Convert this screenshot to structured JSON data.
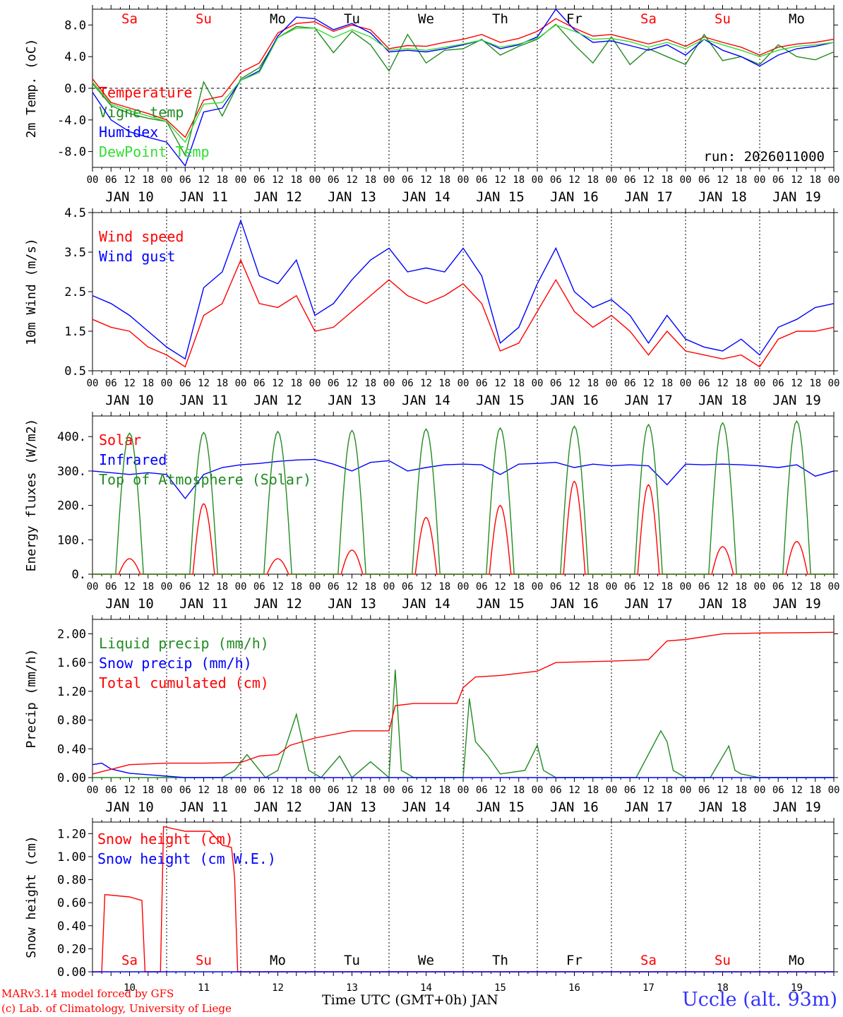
{
  "run_label": "run: 2026011000",
  "footer_model": "MARv3.14 model forced by GFS",
  "footer_copyright": "(c) Lab. of Climatology, University of Liege",
  "station": "Uccle (alt. 93m)",
  "x_title": "Time UTC (GMT+0h) JAN",
  "colors": {
    "red": "#ff0000",
    "green": "#228b22",
    "blue": "#0000ff",
    "light_green": "#33dd33",
    "weekend": "#ff0000",
    "weekday": "#000000"
  },
  "hour_ticks": [
    "00",
    "06",
    "12",
    "18"
  ],
  "days": [
    {
      "abbr": "Sa",
      "label": "JAN 10",
      "num": "10",
      "weekend": true
    },
    {
      "abbr": "Su",
      "label": "JAN 11",
      "num": "11",
      "weekend": true
    },
    {
      "abbr": "Mo",
      "label": "JAN 12",
      "num": "12",
      "weekend": false
    },
    {
      "abbr": "Tu",
      "label": "JAN 13",
      "num": "13",
      "weekend": false
    },
    {
      "abbr": "We",
      "label": "JAN 14",
      "num": "14",
      "weekend": false
    },
    {
      "abbr": "Th",
      "label": "JAN 15",
      "num": "15",
      "weekend": false
    },
    {
      "abbr": "Fr",
      "label": "JAN 16",
      "num": "16",
      "weekend": false
    },
    {
      "abbr": "Sa",
      "label": "JAN 17",
      "num": "17",
      "weekend": true
    },
    {
      "abbr": "Su",
      "label": "JAN 18",
      "num": "18",
      "weekend": true
    },
    {
      "abbr": "Mo",
      "label": "JAN 19",
      "num": "19",
      "weekend": false
    }
  ],
  "chart_data": [
    {
      "type": "line",
      "ylabel": "2m Temp. (oC)",
      "ylim": [
        -10,
        10
      ],
      "yticks": [
        "8.0",
        "4.0",
        "0.0",
        "-4.0",
        "-8.0"
      ],
      "ytick_values": [
        8,
        4,
        0,
        -4,
        -8
      ],
      "zero_line": true,
      "x_unit": "hours since 2026-01-10 00 UTC",
      "series": [
        {
          "name": "Temperature",
          "color": "red",
          "x": [
            0,
            6,
            12,
            18,
            24,
            30,
            36,
            42,
            48,
            54,
            60,
            66,
            72,
            78,
            84,
            90,
            96,
            102,
            108,
            114,
            120,
            126,
            132,
            138,
            144,
            150,
            156,
            162,
            168,
            174,
            180,
            186,
            192,
            198,
            204,
            210,
            216,
            222,
            228,
            234,
            240
          ],
          "values": [
            1.2,
            -1.8,
            -2.5,
            -3.2,
            -4.0,
            -6.2,
            -1.5,
            -1.0,
            2.0,
            3.2,
            7.0,
            8.2,
            8.4,
            7.2,
            8.0,
            7.4,
            5.0,
            5.4,
            5.3,
            5.8,
            6.2,
            6.8,
            5.8,
            6.3,
            7.2,
            8.8,
            7.6,
            6.6,
            6.8,
            6.2,
            5.6,
            6.2,
            5.3,
            6.5,
            5.8,
            5.2,
            4.2,
            5.2,
            5.6,
            5.8,
            6.2
          ]
        },
        {
          "name": "Vigne temp",
          "color": "green",
          "x": [
            0,
            6,
            12,
            18,
            24,
            30,
            36,
            42,
            48,
            54,
            60,
            66,
            72,
            78,
            84,
            90,
            96,
            102,
            108,
            114,
            120,
            126,
            132,
            138,
            144,
            150,
            156,
            162,
            168,
            174,
            180,
            186,
            192,
            198,
            204,
            210,
            216,
            222,
            228,
            234,
            240
          ],
          "values": [
            0.6,
            -2.2,
            -3.2,
            -3.8,
            -4.2,
            -8.5,
            0.8,
            -3.5,
            1.2,
            2.6,
            6.4,
            7.8,
            7.6,
            4.5,
            7.2,
            5.5,
            2.2,
            6.8,
            3.2,
            4.8,
            5.0,
            6.2,
            4.2,
            5.3,
            6.2,
            8.1,
            5.5,
            3.2,
            6.5,
            3.0,
            5.0,
            4.0,
            3.0,
            6.8,
            3.5,
            4.0,
            3.0,
            5.5,
            4.0,
            3.6,
            4.6
          ]
        },
        {
          "name": "Humidex",
          "color": "blue",
          "x": [
            0,
            6,
            12,
            18,
            24,
            30,
            36,
            42,
            48,
            54,
            60,
            66,
            72,
            78,
            84,
            90,
            96,
            102,
            108,
            114,
            120,
            126,
            132,
            138,
            144,
            150,
            156,
            162,
            168,
            174,
            180,
            186,
            192,
            198,
            204,
            210,
            216,
            222,
            228,
            234,
            240
          ],
          "values": [
            -0.5,
            -4.0,
            -5.5,
            -6.2,
            -6.8,
            -9.8,
            -3.0,
            -2.5,
            1.0,
            2.2,
            6.6,
            9.0,
            8.8,
            7.4,
            8.2,
            7.0,
            4.6,
            4.8,
            4.6,
            5.0,
            5.5,
            6.1,
            5.0,
            5.5,
            6.5,
            10.0,
            7.4,
            5.8,
            6.0,
            5.4,
            4.8,
            5.5,
            4.2,
            6.2,
            4.8,
            4.0,
            2.8,
            4.2,
            5.0,
            5.3,
            5.8
          ]
        },
        {
          "name": "DewPoint Temp",
          "color": "light_green",
          "x": [
            0,
            6,
            12,
            18,
            24,
            30,
            36,
            42,
            48,
            54,
            60,
            66,
            72,
            78,
            84,
            90,
            96,
            102,
            108,
            114,
            120,
            126,
            132,
            138,
            144,
            150,
            156,
            162,
            168,
            174,
            180,
            186,
            192,
            198,
            204,
            210,
            216,
            222,
            228,
            234,
            240
          ],
          "values": [
            0.8,
            -2.0,
            -2.8,
            -3.5,
            -4.2,
            -6.8,
            -2.0,
            -1.8,
            1.0,
            2.0,
            6.4,
            7.6,
            7.6,
            6.4,
            7.4,
            6.5,
            4.8,
            5.0,
            4.8,
            5.2,
            5.6,
            6.1,
            5.2,
            5.6,
            6.3,
            8.0,
            7.2,
            6.2,
            6.3,
            5.9,
            5.2,
            5.8,
            5.0,
            6.2,
            5.5,
            4.8,
            4.0,
            4.8,
            5.3,
            5.5,
            5.8
          ]
        }
      ]
    },
    {
      "type": "line",
      "ylabel": "10m Wind (m/s)",
      "ylim": [
        0.5,
        4.5
      ],
      "yticks": [
        "4.5",
        "3.5",
        "2.5",
        "1.5",
        "0.5"
      ],
      "ytick_values": [
        4.5,
        3.5,
        2.5,
        1.5,
        0.5
      ],
      "series": [
        {
          "name": "Wind speed",
          "color": "red",
          "x": [
            0,
            6,
            12,
            18,
            24,
            30,
            36,
            42,
            48,
            54,
            60,
            66,
            72,
            78,
            84,
            90,
            96,
            102,
            108,
            114,
            120,
            126,
            132,
            138,
            144,
            150,
            156,
            162,
            168,
            174,
            180,
            186,
            192,
            198,
            204,
            210,
            216,
            222,
            228,
            234,
            240
          ],
          "values": [
            1.8,
            1.6,
            1.5,
            1.1,
            0.9,
            0.6,
            1.9,
            2.2,
            3.3,
            2.2,
            2.1,
            2.4,
            1.5,
            1.6,
            2.0,
            2.4,
            2.8,
            2.4,
            2.2,
            2.4,
            2.7,
            2.2,
            1.0,
            1.2,
            2.0,
            2.8,
            2.0,
            1.6,
            1.9,
            1.5,
            0.9,
            1.5,
            1.0,
            0.9,
            0.8,
            0.9,
            0.6,
            1.3,
            1.5,
            1.5,
            1.6
          ]
        },
        {
          "name": "Wind gust",
          "color": "blue",
          "x": [
            0,
            6,
            12,
            18,
            24,
            30,
            36,
            42,
            48,
            54,
            60,
            66,
            72,
            78,
            84,
            90,
            96,
            102,
            108,
            114,
            120,
            126,
            132,
            138,
            144,
            150,
            156,
            162,
            168,
            174,
            180,
            186,
            192,
            198,
            204,
            210,
            216,
            222,
            228,
            234,
            240
          ],
          "values": [
            2.4,
            2.2,
            1.9,
            1.5,
            1.1,
            0.8,
            2.6,
            3.0,
            4.3,
            2.9,
            2.7,
            3.3,
            1.9,
            2.2,
            2.8,
            3.3,
            3.6,
            3.0,
            3.1,
            3.0,
            3.6,
            2.9,
            1.2,
            1.6,
            2.7,
            3.6,
            2.5,
            2.1,
            2.3,
            1.9,
            1.2,
            1.9,
            1.3,
            1.1,
            1.0,
            1.3,
            0.9,
            1.6,
            1.8,
            2.1,
            2.2
          ]
        }
      ]
    },
    {
      "type": "line",
      "ylabel": "Energy fluxes (W/m2)",
      "ylim": [
        0,
        460
      ],
      "yticks": [
        "400.",
        "300.",
        "200.",
        "100.",
        "0."
      ],
      "ytick_values": [
        400,
        300,
        200,
        100,
        0
      ],
      "series": [
        {
          "name": "Solar",
          "color": "red",
          "peaks": [
            45,
            205,
            45,
            70,
            165,
            200,
            270,
            260,
            80,
            95
          ]
        },
        {
          "name": "Infrared",
          "color": "blue",
          "x": [
            0,
            6,
            12,
            18,
            24,
            30,
            36,
            42,
            48,
            54,
            60,
            66,
            72,
            78,
            84,
            90,
            96,
            102,
            108,
            114,
            120,
            126,
            132,
            138,
            144,
            150,
            156,
            162,
            168,
            174,
            180,
            186,
            192,
            198,
            204,
            210,
            216,
            222,
            228,
            234,
            240
          ],
          "values": [
            300,
            295,
            290,
            295,
            290,
            220,
            290,
            310,
            318,
            322,
            328,
            332,
            334,
            320,
            300,
            325,
            330,
            300,
            310,
            318,
            320,
            318,
            290,
            320,
            322,
            325,
            310,
            320,
            315,
            318,
            315,
            260,
            320,
            318,
            320,
            318,
            315,
            310,
            318,
            285,
            300
          ]
        },
        {
          "name": "Top of Atmosphere (Solar)",
          "color": "green",
          "peaks": [
            410,
            412,
            415,
            418,
            422,
            425,
            430,
            435,
            440,
            445
          ]
        }
      ]
    },
    {
      "type": "line",
      "ylabel": "Precip (mm/h)",
      "ylim": [
        0,
        2.2
      ],
      "yticks": [
        "2.00",
        "1.60",
        "1.20",
        "0.80",
        "0.40",
        "0.00"
      ],
      "ytick_values": [
        2.0,
        1.6,
        1.2,
        0.8,
        0.4,
        0.0
      ],
      "series": [
        {
          "name": "Liquid precip (mm/h)",
          "color": "green",
          "x": [
            0,
            42,
            46,
            50,
            56,
            60,
            66,
            70,
            74,
            80,
            84,
            90,
            96,
            98,
            100,
            104,
            120,
            122,
            124,
            128,
            132,
            140,
            144,
            146,
            150,
            168,
            176,
            184,
            186,
            188,
            192,
            200,
            206,
            208,
            210,
            216,
            240
          ],
          "values": [
            0.0,
            0.0,
            0.1,
            0.32,
            0.0,
            0.1,
            0.88,
            0.1,
            0.0,
            0.3,
            0.0,
            0.22,
            0.0,
            1.5,
            0.1,
            0.0,
            0.0,
            1.1,
            0.5,
            0.3,
            0.05,
            0.1,
            0.45,
            0.1,
            0.0,
            0.0,
            0.0,
            0.65,
            0.5,
            0.1,
            0.0,
            0.0,
            0.44,
            0.1,
            0.05,
            0.0,
            0.0
          ]
        },
        {
          "name": "Snow precip (mm/h)",
          "color": "blue",
          "x": [
            0,
            3,
            6,
            12,
            18,
            24,
            30,
            240
          ],
          "values": [
            0.18,
            0.2,
            0.12,
            0.06,
            0.04,
            0.02,
            0.0,
            0.0
          ]
        },
        {
          "name": "Total cumulated (cm)",
          "color": "red",
          "x": [
            0,
            12,
            24,
            36,
            48,
            54,
            60,
            64,
            72,
            84,
            96,
            98,
            104,
            118,
            120,
            124,
            132,
            144,
            150,
            168,
            180,
            186,
            192,
            204,
            216,
            240
          ],
          "values": [
            0.05,
            0.18,
            0.2,
            0.2,
            0.21,
            0.3,
            0.32,
            0.45,
            0.55,
            0.65,
            0.65,
            1.0,
            1.03,
            1.03,
            1.25,
            1.4,
            1.42,
            1.48,
            1.6,
            1.62,
            1.64,
            1.9,
            1.92,
            2.0,
            2.01,
            2.02
          ]
        }
      ]
    },
    {
      "type": "line",
      "ylabel": "Snow height (cm)",
      "ylim": [
        0,
        1.3
      ],
      "yticks": [
        "1.20",
        "1.00",
        "0.80",
        "0.60",
        "0.40",
        "0.20",
        "0.00"
      ],
      "ytick_values": [
        1.2,
        1.0,
        0.8,
        0.6,
        0.4,
        0.2,
        0.0
      ],
      "series": [
        {
          "name": "Snow height (cm)",
          "color": "red",
          "x": [
            0,
            3,
            4,
            12,
            16,
            17,
            22,
            23,
            30,
            38,
            42,
            45,
            46,
            47,
            48,
            240
          ],
          "values": [
            0,
            0,
            0.67,
            0.65,
            0.62,
            0,
            0,
            1.26,
            1.22,
            1.22,
            1.1,
            1.08,
            0.82,
            0,
            0,
            0
          ]
        },
        {
          "name": "Snow height (cm W.E.)",
          "color": "blue",
          "x": [
            0,
            240
          ],
          "values": [
            0,
            0
          ]
        }
      ]
    }
  ]
}
